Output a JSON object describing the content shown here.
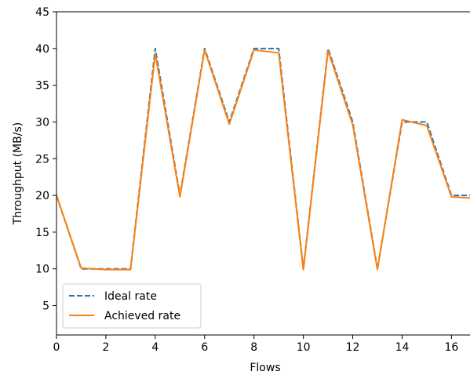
{
  "chart_data": {
    "type": "line",
    "xlabel": "Flows",
    "ylabel": "Throughput (MB/s)",
    "xlim": [
      0,
      16.75
    ],
    "ylim": [
      1,
      45
    ],
    "x_ticks": [
      0,
      2,
      4,
      6,
      8,
      10,
      12,
      14,
      16
    ],
    "y_ticks": [
      5,
      10,
      15,
      20,
      25,
      30,
      35,
      40,
      45
    ],
    "grid": false,
    "legend_placement": "bottom-left",
    "x": [
      0,
      1,
      2,
      3,
      4,
      5,
      6,
      7,
      8,
      9,
      10,
      11,
      12,
      13,
      14,
      15,
      16,
      17
    ],
    "series": [
      {
        "name": "Ideal rate",
        "style": "dashed",
        "color": "#1f77b4",
        "values": [
          20,
          10,
          10,
          10,
          40,
          20,
          40,
          30,
          40,
          40,
          10,
          40,
          30,
          10,
          30,
          30,
          20,
          20
        ]
      },
      {
        "name": "Achieved rate",
        "style": "solid",
        "color": "#ff7f0e",
        "values": [
          20,
          10.1,
          9.9,
          9.9,
          39.3,
          19.8,
          39.8,
          29.7,
          39.8,
          39.4,
          9.9,
          39.7,
          29.6,
          9.9,
          30.3,
          29.5,
          19.8,
          19.6
        ]
      }
    ]
  }
}
